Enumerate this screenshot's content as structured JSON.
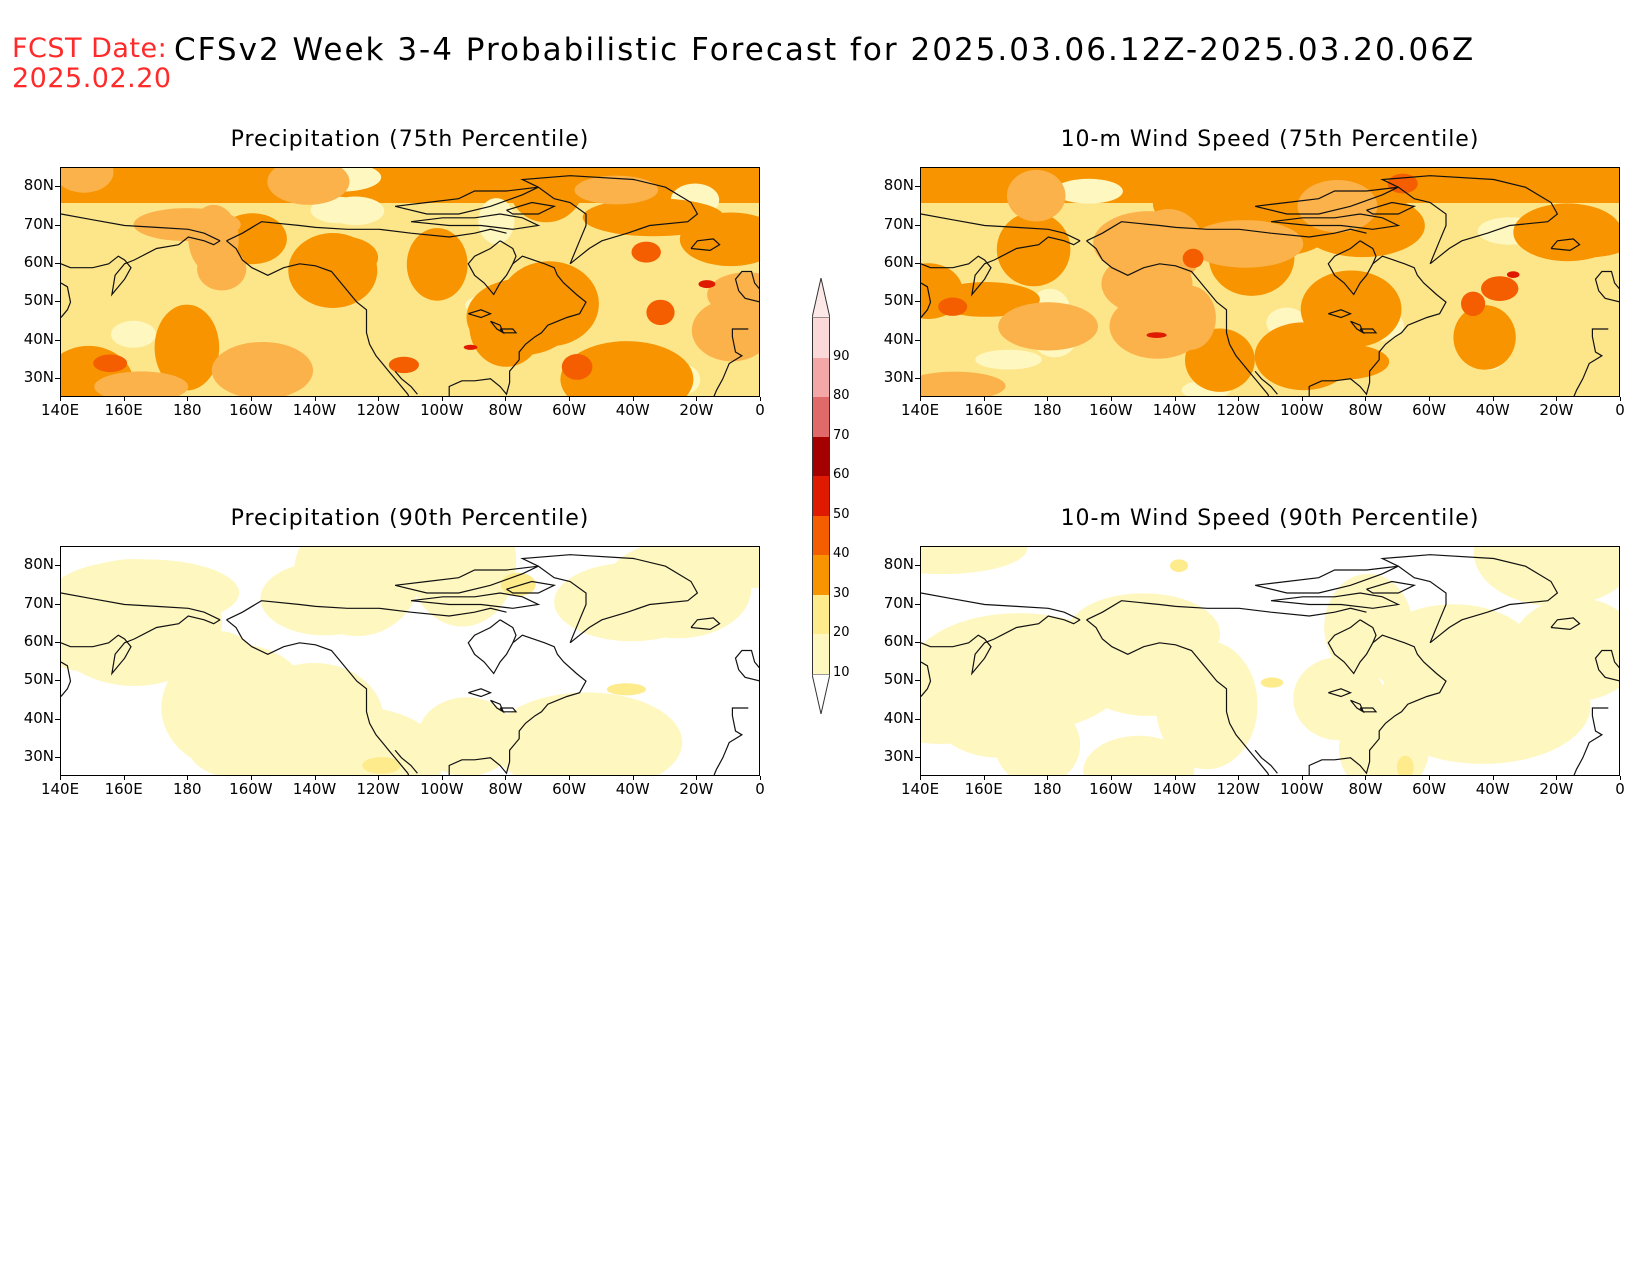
{
  "header": {
    "fcst_label": "FCST Date:",
    "fcst_date": "2025.02.20",
    "title": "CFSv2 Week 3-4 Probabilistic Forecast for 2025.03.06.12Z-2025.03.20.06Z"
  },
  "axes": {
    "lat_labels": [
      "80N",
      "70N",
      "60N",
      "50N",
      "40N",
      "30N"
    ],
    "lon_labels": [
      "140E",
      "160E",
      "180",
      "160W",
      "140W",
      "120W",
      "100W",
      "80W",
      "60W",
      "40W",
      "20W",
      "0"
    ]
  },
  "panels": [
    {
      "title": "Precipitation (75th Percentile)",
      "intensity": "high"
    },
    {
      "title": "10-m Wind Speed (75th Percentile)",
      "intensity": "high"
    },
    {
      "title": "Precipitation (90th Percentile)",
      "intensity": "low"
    },
    {
      "title": "10-m Wind Speed (90th Percentile)",
      "intensity": "low"
    }
  ],
  "colorbar": {
    "labels": [
      "90",
      "80",
      "70",
      "60",
      "50",
      "40",
      "30",
      "20",
      "10"
    ],
    "colors": [
      "#fcd9d9",
      "#f4a7a7",
      "#e06a6a",
      "#a50000",
      "#e01a00",
      "#f45d00",
      "#f79400",
      "#fdeb8c",
      "#fff7c0"
    ]
  }
}
